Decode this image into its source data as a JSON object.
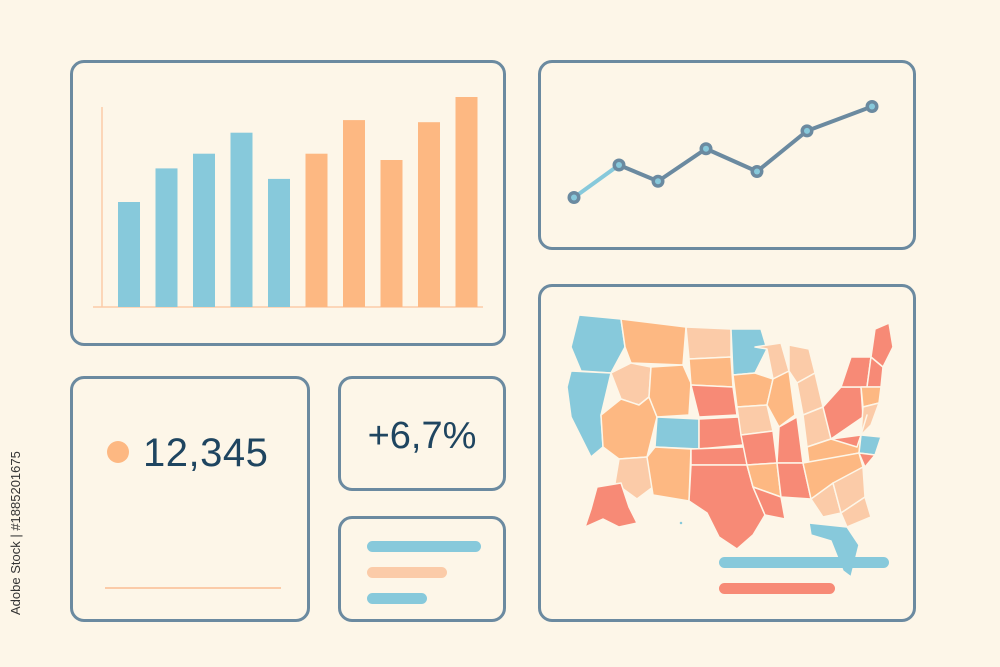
{
  "colors": {
    "background": "#fdf6e8",
    "border": "#6b8aa0",
    "blue": "#87c9db",
    "orange": "#fdb882",
    "light_orange": "#fbcba8",
    "red": "#f78a76",
    "navy": "#1f4560",
    "line": "#6b8aa0"
  },
  "chart_data": [
    {
      "type": "bar",
      "values": [
        50,
        66,
        73,
        83,
        61,
        73,
        89,
        70,
        88,
        100
      ],
      "series_colors": [
        "blue",
        "blue",
        "blue",
        "blue",
        "blue",
        "orange",
        "orange",
        "orange",
        "orange",
        "orange"
      ],
      "ylim": [
        0,
        100
      ]
    },
    {
      "type": "line",
      "values": [
        4,
        24,
        14,
        34,
        20,
        45,
        60
      ],
      "ylim": [
        0,
        64
      ]
    }
  ],
  "kpi": {
    "value": "12,345",
    "dot_icon": "orange-dot-icon"
  },
  "percent": {
    "value": "+6,7%"
  },
  "watermark": {
    "text": "Adobe Stock | #1885201675"
  },
  "map": {
    "icon": "usa-map-icon"
  }
}
